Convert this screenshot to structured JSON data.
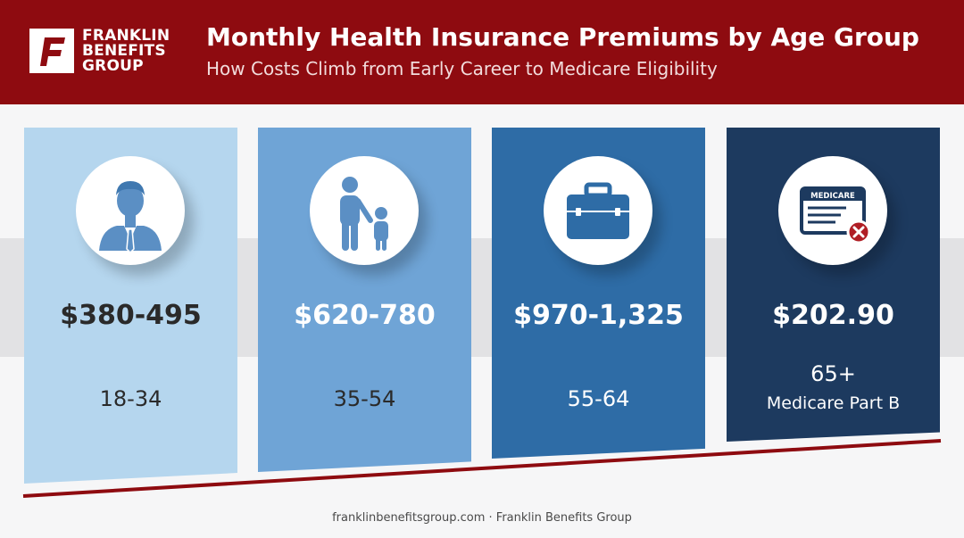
{
  "brand": {
    "logo_lines": [
      "FRANKLIN",
      "BENEFITS",
      "GROUP"
    ],
    "logo_letter": "F",
    "color": "#8e0b10"
  },
  "header": {
    "title": "Monthly Health Insurance Premiums by Age Group",
    "subtitle": "How Costs Climb from Early Career to Medicare Eligibility"
  },
  "cards": [
    {
      "amount": "$380-495",
      "age": "18-34",
      "icon": "businessman-icon",
      "color": "#b5d6ee"
    },
    {
      "amount": "$620-780",
      "age": "35-54",
      "icon": "parent-child-icon",
      "color": "#6fa4d6"
    },
    {
      "amount": "$970-1,325",
      "age": "55-64",
      "icon": "briefcase-icon",
      "color": "#2e6ca6"
    },
    {
      "amount": "$202.90",
      "age": "65+",
      "subtext": "Medicare Part B",
      "icon": "medicare-card-icon",
      "color": "#1d3a5f"
    }
  ],
  "medicare_card_label": "MEDICARE",
  "footer": "franklinbenefitsgroup.com · Franklin Benefits Group"
}
